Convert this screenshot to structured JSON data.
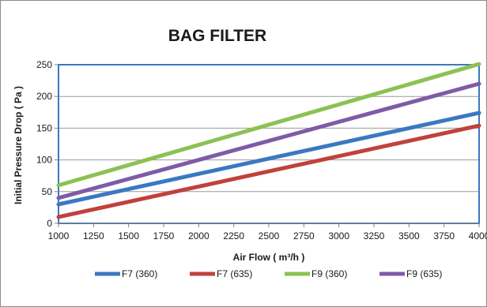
{
  "chart_data": {
    "type": "line",
    "title": "BAG FILTER",
    "xlabel": "Air Flow ( m³/h )",
    "ylabel": "Initial Pressure Drop ( Pa )",
    "xlim": [
      1000,
      4000
    ],
    "ylim": [
      0,
      250
    ],
    "xticks": [
      1000,
      1250,
      1500,
      1750,
      2000,
      2250,
      2500,
      2750,
      3000,
      3250,
      3500,
      3750,
      4000
    ],
    "yticks": [
      0,
      50,
      100,
      150,
      200,
      250
    ],
    "grid": "horizontal",
    "legend_position": "bottom",
    "series": [
      {
        "name": "F7 (360)",
        "color": "#3a78c2",
        "x": [
          1000,
          4000
        ],
        "y": [
          30,
          174
        ]
      },
      {
        "name": "F7 (635)",
        "color": "#c0413d",
        "x": [
          1000,
          4000
        ],
        "y": [
          10,
          154
        ]
      },
      {
        "name": "F9 (360)",
        "color": "#8cc153",
        "x": [
          1000,
          4000
        ],
        "y": [
          60,
          251
        ]
      },
      {
        "name": "F9 (635)",
        "color": "#7e5ba6",
        "x": [
          1000,
          4000
        ],
        "y": [
          40,
          220
        ]
      }
    ]
  }
}
